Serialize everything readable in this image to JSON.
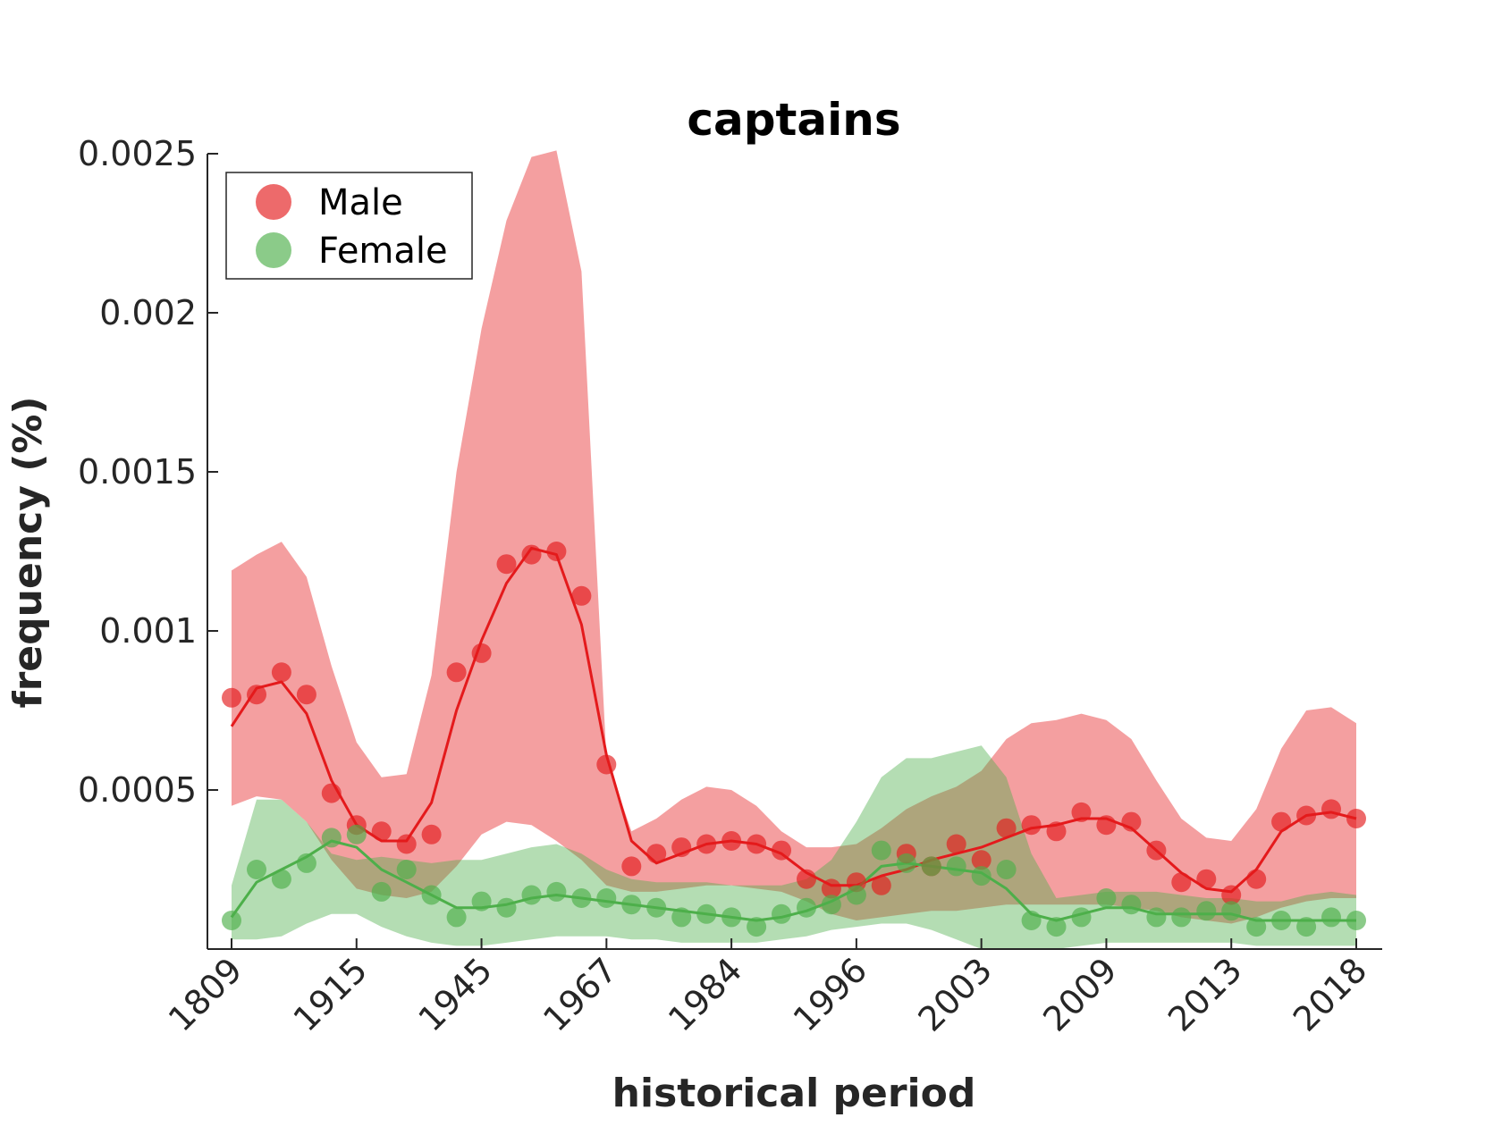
{
  "chart_data": {
    "type": "line",
    "title": "captains",
    "xlabel": "historical period",
    "ylabel": "frequency (%)",
    "ylim": [
      0,
      0.0025
    ],
    "yticks": [
      0.0005,
      0.001,
      0.0015,
      0.002,
      0.0025
    ],
    "ytick_labels": [
      "0.0005",
      "0.001",
      "0.0015",
      "0.002",
      "0.0025"
    ],
    "xtick_labels": [
      "1809",
      "1915",
      "1945",
      "1967",
      "1984",
      "1996",
      "2003",
      "2009",
      "2013",
      "2018"
    ],
    "point_count": 46,
    "legend_position": "top-left",
    "grid": false,
    "series": [
      {
        "name": "Male",
        "color": "#e41a1c",
        "points": [
          0.00079,
          0.0008,
          0.00087,
          0.0008,
          0.00049,
          0.00039,
          0.00037,
          0.00033,
          0.00036,
          0.00087,
          0.00093,
          0.00121,
          0.00124,
          0.00125,
          0.00111,
          0.00058,
          0.00026,
          0.0003,
          0.00032,
          0.00033,
          0.00034,
          0.00033,
          0.00031,
          0.00022,
          0.00019,
          0.00021,
          0.0002,
          0.0003,
          0.00026,
          0.00033,
          0.00028,
          0.00038,
          0.00039,
          0.00037,
          0.00043,
          0.00039,
          0.0004,
          0.00031,
          0.00021,
          0.00022,
          0.00017,
          0.00022,
          0.0004,
          0.00042,
          0.00044,
          0.00041
        ],
        "line": [
          0.0007,
          0.00082,
          0.00084,
          0.00074,
          0.00053,
          0.00039,
          0.00034,
          0.00034,
          0.00046,
          0.00075,
          0.00097,
          0.00115,
          0.00126,
          0.00124,
          0.00102,
          0.00061,
          0.00034,
          0.00027,
          0.0003,
          0.00033,
          0.00034,
          0.00033,
          0.0003,
          0.00024,
          0.0002,
          0.0002,
          0.00023,
          0.00025,
          0.00028,
          0.0003,
          0.00032,
          0.00035,
          0.00038,
          0.00039,
          0.00041,
          0.00041,
          0.00038,
          0.00031,
          0.00024,
          0.00019,
          0.00018,
          0.00025,
          0.00037,
          0.00042,
          0.00043,
          0.00041
        ],
        "band_upper": [
          0.00119,
          0.00124,
          0.00128,
          0.00117,
          0.00089,
          0.00065,
          0.00054,
          0.00055,
          0.00086,
          0.0015,
          0.00195,
          0.00229,
          0.00249,
          0.00251,
          0.00213,
          0.0006,
          0.00037,
          0.00041,
          0.00047,
          0.00051,
          0.0005,
          0.00045,
          0.00037,
          0.00032,
          0.00032,
          0.00033,
          0.00038,
          0.00044,
          0.00048,
          0.00051,
          0.00056,
          0.00066,
          0.00071,
          0.00072,
          0.00074,
          0.00072,
          0.00066,
          0.00053,
          0.00041,
          0.00035,
          0.00034,
          0.00044,
          0.00063,
          0.00075,
          0.00076,
          0.00071
        ],
        "band_lower": [
          0.00045,
          0.00048,
          0.00047,
          0.0004,
          0.00028,
          0.00019,
          0.00017,
          0.00016,
          0.00018,
          0.00026,
          0.00036,
          0.0004,
          0.00039,
          0.00034,
          0.00028,
          0.0002,
          0.00018,
          0.00018,
          0.00019,
          0.0002,
          0.0002,
          0.00019,
          0.00018,
          0.00015,
          0.00011,
          9e-05,
          0.0001,
          0.00011,
          0.00012,
          0.00012,
          0.00013,
          0.00014,
          0.00014,
          0.00014,
          0.00014,
          0.00014,
          0.00013,
          0.00012,
          0.0001,
          9e-05,
          8e-05,
          0.0001,
          0.00013,
          0.00015,
          0.00016,
          0.00016
        ]
      },
      {
        "name": "Female",
        "color": "#4daf4a",
        "points": [
          9e-05,
          0.00025,
          0.00022,
          0.00027,
          0.00035,
          0.00036,
          0.00018,
          0.00025,
          0.00017,
          0.0001,
          0.00015,
          0.00013,
          0.00017,
          0.00018,
          0.00016,
          0.00016,
          0.00014,
          0.00013,
          0.0001,
          0.00011,
          0.0001,
          7e-05,
          0.00011,
          0.00013,
          0.00014,
          0.00017,
          0.00031,
          0.00027,
          0.00026,
          0.00026,
          0.00023,
          0.00025,
          9e-05,
          7e-05,
          0.0001,
          0.00016,
          0.00014,
          0.0001,
          0.0001,
          0.00012,
          0.00012,
          7e-05,
          9e-05,
          7e-05,
          0.0001,
          9e-05
        ],
        "line": [
          0.0001,
          0.00021,
          0.00025,
          0.00029,
          0.00034,
          0.00032,
          0.00025,
          0.00021,
          0.00017,
          0.00013,
          0.00013,
          0.00014,
          0.00016,
          0.00017,
          0.00016,
          0.00015,
          0.00014,
          0.00013,
          0.00012,
          0.00011,
          0.0001,
          9e-05,
          0.0001,
          0.00012,
          0.00015,
          0.00019,
          0.00026,
          0.00027,
          0.00026,
          0.00025,
          0.00024,
          0.00019,
          0.00011,
          9e-05,
          0.00011,
          0.00013,
          0.00013,
          0.00011,
          0.00011,
          0.00011,
          0.00011,
          9e-05,
          9e-05,
          9e-05,
          9e-05,
          9e-05
        ],
        "band_upper": [
          0.0002,
          0.00047,
          0.00047,
          0.0004,
          0.0003,
          0.00028,
          0.00029,
          0.00028,
          0.00027,
          0.00028,
          0.00028,
          0.0003,
          0.00032,
          0.00033,
          0.0003,
          0.00025,
          0.00022,
          0.00021,
          0.00021,
          0.00021,
          0.0002,
          0.0002,
          0.0002,
          0.00022,
          0.00028,
          0.0004,
          0.00054,
          0.0006,
          0.0006,
          0.00062,
          0.00064,
          0.00054,
          0.0003,
          0.00016,
          0.00017,
          0.00018,
          0.00018,
          0.00018,
          0.00017,
          0.00016,
          0.00016,
          0.00015,
          0.00015,
          0.00017,
          0.00018,
          0.00017
        ],
        "band_lower": [
          3e-05,
          3e-05,
          4e-05,
          8e-05,
          0.00011,
          0.00011,
          7e-05,
          4e-05,
          2e-05,
          1e-05,
          1e-05,
          2e-05,
          3e-05,
          4e-05,
          4e-05,
          4e-05,
          3e-05,
          3e-05,
          2e-05,
          2e-05,
          2e-05,
          2e-05,
          3e-05,
          4e-05,
          6e-05,
          7e-05,
          8e-05,
          8e-05,
          6e-05,
          3e-05,
          0.0,
          0.0,
          0.0,
          0.0,
          1e-05,
          2e-05,
          2e-05,
          2e-05,
          2e-05,
          2e-05,
          2e-05,
          1e-05,
          1e-05,
          1e-05,
          1e-05,
          1e-05
        ]
      }
    ]
  }
}
